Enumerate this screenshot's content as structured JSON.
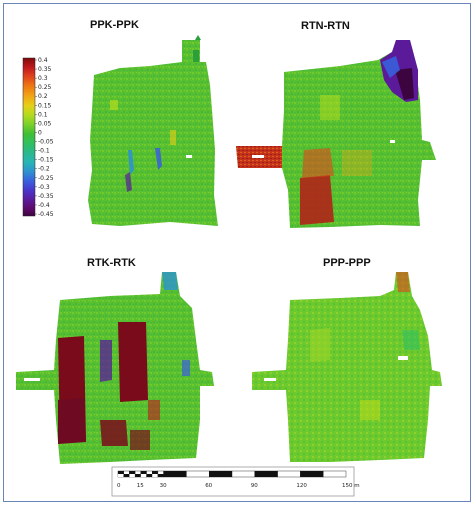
{
  "panels": [
    {
      "id": "ppk",
      "title": "PPK-PPK"
    },
    {
      "id": "rtn",
      "title": "RTN-RTN"
    },
    {
      "id": "rtk",
      "title": "RTK-RTK"
    },
    {
      "id": "ppp",
      "title": "PPP-PPP"
    }
  ],
  "colorbar": {
    "ticks": [
      "0.4",
      "0.35",
      "0.3",
      "0.25",
      "0.2",
      "0.15",
      "0.1",
      "0.05",
      "0",
      "-0.05",
      "-0.1",
      "-0.15",
      "-0.2",
      "-0.25",
      "-0.3",
      "-0.35",
      "-0.4",
      "-0.45"
    ],
    "colors": [
      "#7f0a0a",
      "#c0181c",
      "#e0461c",
      "#ee7a12",
      "#f2a414",
      "#e6cf18",
      "#b5db1e",
      "#7ad129",
      "#3fbf34",
      "#30c060",
      "#2ab88d",
      "#27b5b5",
      "#2e92d1",
      "#3a5fdc",
      "#4a34c9",
      "#5a1a9a",
      "#5e0a6d",
      "#3d053f"
    ]
  },
  "colors": {
    "base_green": "#58c030",
    "dark_red": "#7a0b1b",
    "frame_border": "#6a86b8"
  },
  "scalebar": {
    "labels": [
      "0",
      "15",
      "30",
      "60",
      "90",
      "120",
      "150 m"
    ]
  }
}
